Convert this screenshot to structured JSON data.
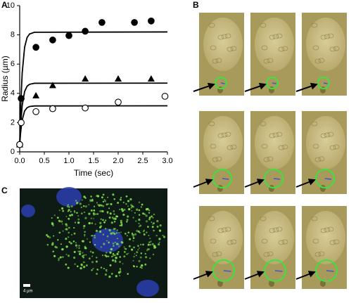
{
  "panel_labels": [
    "A",
    "B",
    "C"
  ],
  "chart_data": {
    "type": "scatter",
    "x_label": "Time (sec)",
    "y_label": "Radius (µm)",
    "xlim": [
      0,
      3
    ],
    "ylim": [
      0,
      10
    ],
    "xticks": [
      {
        "value": 0,
        "label": "0.0"
      },
      0.5,
      {
        "value": 1,
        "label": "1.0"
      },
      1.5,
      {
        "value": 2,
        "label": "2.0"
      },
      2.5,
      {
        "value": 3,
        "label": "3.0"
      }
    ],
    "yticks": [
      0,
      2,
      4,
      6,
      8,
      10
    ],
    "color": "#000000",
    "series": [
      {
        "marker": "circle-filled",
        "x": [
          0,
          0.03,
          0.33,
          0.67,
          1.0,
          1.33,
          1.67,
          2.33,
          2.67
        ],
        "values": [
          0.5,
          3.65,
          7.15,
          7.65,
          7.95,
          8.25,
          8.85,
          8.85,
          8.95
        ]
      },
      {
        "marker": "triangle",
        "x": [
          0,
          0.33,
          0.67,
          1.33,
          2.0,
          2.67
        ],
        "values": [
          0.5,
          3.85,
          4.55,
          5.0,
          5.0,
          5.0
        ]
      },
      {
        "marker": "circle-open",
        "x": [
          0,
          0.03,
          0.33,
          0.67,
          1.33,
          2.0,
          2.95
        ],
        "values": [
          0.5,
          2.0,
          2.75,
          2.95,
          3.0,
          3.4,
          3.8
        ]
      }
    ],
    "fits": [
      {
        "x": [
          0,
          0.02,
          0.05,
          0.1,
          0.15,
          0.2,
          0.3,
          3.0
        ],
        "values": [
          0.5,
          3.04,
          5.37,
          7.16,
          7.82,
          8.06,
          8.18,
          8.2
        ]
      },
      {
        "x": [
          0,
          0.02,
          0.05,
          0.1,
          0.15,
          0.2,
          0.3,
          3.0
        ],
        "values": [
          0.5,
          1.89,
          3.15,
          4.13,
          4.49,
          4.62,
          4.69,
          4.7
        ]
      },
      {
        "x": [
          0,
          0.02,
          0.05,
          0.1,
          0.15,
          0.2,
          0.3,
          3.0
        ],
        "values": [
          0.5,
          1.37,
          2.17,
          2.8,
          3.02,
          3.1,
          3.14,
          3.15
        ]
      }
    ]
  },
  "scale_bar": "4 µm"
}
